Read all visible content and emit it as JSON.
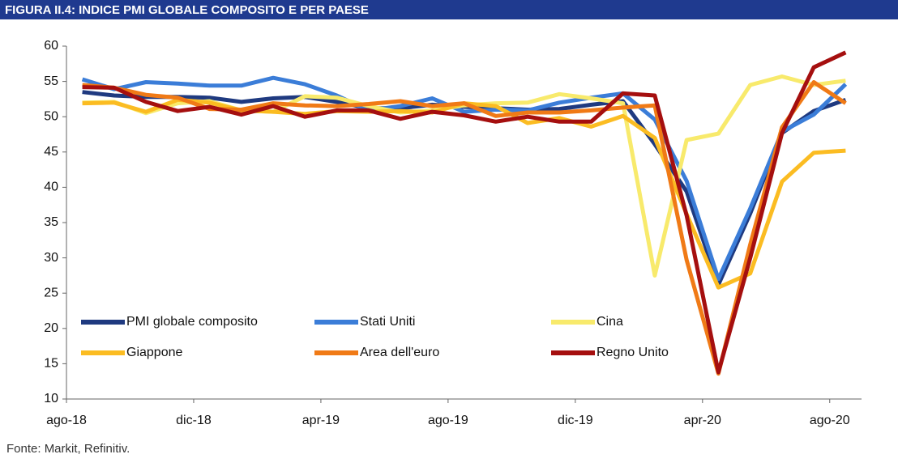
{
  "chart_data": {
    "type": "line",
    "title": "FIGURA II.4: INDICE PMI GLOBALE COMPOSITO E PER PAESE",
    "source": "Fonte: Markit, Refinitiv.",
    "categories": [
      "ago-18",
      null,
      null,
      null,
      "dic-18",
      null,
      null,
      null,
      "apr-19",
      null,
      null,
      null,
      "ago-19",
      null,
      null,
      null,
      "dic-19",
      null,
      null,
      null,
      "apr-20",
      null,
      null,
      null,
      "ago-20"
    ],
    "ylim": [
      10,
      60
    ],
    "yticks": [
      10,
      15,
      20,
      25,
      30,
      35,
      40,
      45,
      50,
      55,
      60
    ],
    "grid": false,
    "series": [
      {
        "name": "PMI globale composito",
        "color": "#1f3a80",
        "values": [
          53.5,
          53.0,
          52.8,
          52.8,
          52.7,
          52.1,
          52.6,
          52.8,
          52.1,
          51.2,
          51.2,
          51.7,
          51.4,
          51.2,
          51.0,
          51.1,
          51.7,
          52.2,
          46.1,
          39.4,
          26.2,
          36.3,
          47.7,
          50.8,
          52.4
        ]
      },
      {
        "name": "Stati Uniti",
        "color": "#3b7dd8",
        "values": [
          55.3,
          53.9,
          54.9,
          54.7,
          54.4,
          54.4,
          55.5,
          54.6,
          53.0,
          50.9,
          51.5,
          52.6,
          50.7,
          51.0,
          50.9,
          52.0,
          52.7,
          53.3,
          49.6,
          40.9,
          27.0,
          37.0,
          47.9,
          50.3,
          54.6
        ]
      },
      {
        "name": "Cina",
        "color": "#f8ea6c",
        "values": [
          52.0,
          52.1,
          50.5,
          51.9,
          52.2,
          50.9,
          50.7,
          52.9,
          52.7,
          51.5,
          50.6,
          50.9,
          51.6,
          51.9,
          52.0,
          53.2,
          52.6,
          51.9,
          27.5,
          46.7,
          47.6,
          54.5,
          55.7,
          54.5,
          55.1
        ]
      },
      {
        "name": "Giappone",
        "color": "#fbbc22",
        "values": [
          51.9,
          52.0,
          50.7,
          52.4,
          52.0,
          50.9,
          50.7,
          50.4,
          50.8,
          50.7,
          50.8,
          50.6,
          51.9,
          51.5,
          49.1,
          49.8,
          48.6,
          50.1,
          47.0,
          36.2,
          25.8,
          27.8,
          40.8,
          44.9,
          45.2
        ]
      },
      {
        "name": "Area dell'euro",
        "color": "#f07a16",
        "values": [
          54.5,
          54.1,
          53.1,
          52.7,
          51.1,
          51.0,
          51.9,
          51.6,
          51.5,
          51.8,
          52.2,
          51.5,
          51.9,
          50.1,
          50.6,
          50.6,
          50.9,
          51.3,
          51.6,
          29.7,
          13.6,
          31.9,
          48.5,
          54.9,
          51.9
        ]
      },
      {
        "name": "Regno Unito",
        "color": "#a50f0f",
        "values": [
          54.2,
          54.1,
          52.1,
          50.8,
          51.4,
          50.3,
          51.5,
          50.0,
          50.9,
          50.9,
          49.7,
          50.7,
          50.2,
          49.3,
          50.0,
          49.3,
          49.3,
          53.3,
          53.0,
          36.0,
          13.8,
          30.0,
          47.7,
          57.0,
          59.1
        ]
      }
    ]
  }
}
